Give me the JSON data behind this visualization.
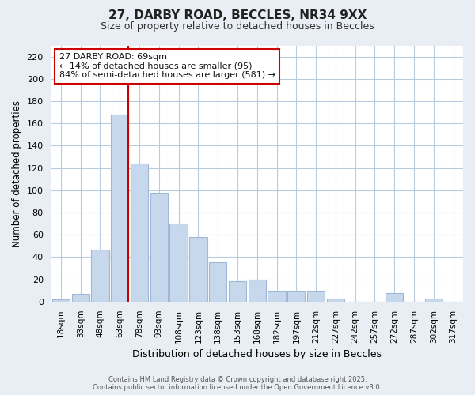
{
  "title": "27, DARBY ROAD, BECCLES, NR34 9XX",
  "subtitle": "Size of property relative to detached houses in Beccles",
  "xlabel": "Distribution of detached houses by size in Beccles",
  "ylabel": "Number of detached properties",
  "categories": [
    "18sqm",
    "33sqm",
    "48sqm",
    "63sqm",
    "78sqm",
    "93sqm",
    "108sqm",
    "123sqm",
    "138sqm",
    "153sqm",
    "168sqm",
    "182sqm",
    "197sqm",
    "212sqm",
    "227sqm",
    "242sqm",
    "257sqm",
    "272sqm",
    "287sqm",
    "302sqm",
    "317sqm"
  ],
  "values": [
    2,
    7,
    47,
    168,
    124,
    98,
    70,
    58,
    35,
    18,
    20,
    10,
    10,
    10,
    3,
    0,
    0,
    8,
    0,
    3,
    0
  ],
  "bar_color": "#c8d8ec",
  "bar_edge_color": "#a0b8d8",
  "highlight_color": "#cc0000",
  "annotation_text": "27 DARBY ROAD: 69sqm\n← 14% of detached houses are smaller (95)\n84% of semi-detached houses are larger (581) →",
  "annotation_box_color": "#cc0000",
  "ylim": [
    0,
    230
  ],
  "yticks": [
    0,
    20,
    40,
    60,
    80,
    100,
    120,
    140,
    160,
    180,
    200,
    220
  ],
  "footer_line1": "Contains HM Land Registry data © Crown copyright and database right 2025.",
  "footer_line2": "Contains public sector information licensed under the Open Government Licence v3.0.",
  "bg_color": "#e8eef4",
  "plot_bg_color": "#ffffff",
  "grid_color": "#b8cce0"
}
